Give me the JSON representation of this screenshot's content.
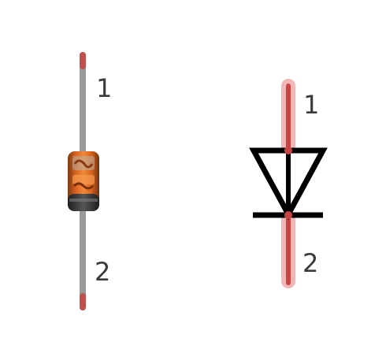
{
  "breadboard_view": {
    "component": "diode",
    "pin_labels": [
      "1",
      "2"
    ],
    "colors": {
      "lead": "#9a9a9a",
      "lead_tip": "#c0504d",
      "body_orange": "#d9621e",
      "body_dark": "#3a3a3a",
      "cathode_band": "#2a2a2a"
    }
  },
  "schematic_view": {
    "symbol": "diode",
    "pin_labels": [
      "1",
      "2"
    ],
    "colors": {
      "symbol_stroke": "#000000",
      "pin_highlight": "#e06060",
      "pin_core": "#c94545"
    }
  }
}
